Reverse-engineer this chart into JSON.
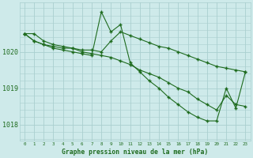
{
  "title": "Graphe pression niveau de la mer (hPa)",
  "background_color": "#ceeaea",
  "grid_color": "#aacfcf",
  "line_color": "#1e6b1e",
  "xlim": [
    -0.5,
    23.5
  ],
  "ylim": [
    1017.55,
    1021.35
  ],
  "yticks": [
    1018,
    1019,
    1020
  ],
  "ylabel_fontsize": 6.0,
  "xlabel_fontsize": 5.8,
  "series1": {
    "x": [
      0,
      1,
      2,
      3,
      4,
      5,
      6,
      7,
      8,
      9,
      10,
      11,
      12,
      13,
      14,
      15,
      16,
      17,
      18,
      19,
      20,
      21,
      22,
      23
    ],
    "y": [
      1020.5,
      1020.5,
      1020.3,
      1020.2,
      1020.15,
      1020.1,
      1020.05,
      1020.05,
      1020.0,
      1020.3,
      1020.55,
      1020.45,
      1020.35,
      1020.25,
      1020.15,
      1020.1,
      1020.0,
      1019.9,
      1019.8,
      1019.7,
      1019.6,
      1019.55,
      1019.5,
      1019.45
    ]
  },
  "series2": {
    "x": [
      0,
      1,
      2,
      3,
      4,
      5,
      6,
      7,
      8,
      9,
      10,
      11,
      12,
      13,
      14,
      15,
      16,
      17,
      18,
      19,
      20,
      21,
      22,
      23
    ],
    "y": [
      1020.5,
      1020.3,
      1020.2,
      1020.15,
      1020.1,
      1020.1,
      1020.0,
      1019.95,
      1019.9,
      1019.85,
      1019.75,
      1019.65,
      1019.5,
      1019.4,
      1019.3,
      1019.15,
      1019.0,
      1018.9,
      1018.7,
      1018.55,
      1018.4,
      1018.8,
      1018.55,
      1018.5
    ]
  },
  "series3": {
    "x": [
      0,
      1,
      2,
      3,
      4,
      5,
      6,
      7,
      8,
      9,
      10,
      11,
      12,
      13,
      14,
      15,
      16,
      17,
      18,
      19,
      20,
      21,
      22,
      23
    ],
    "y": [
      1020.5,
      1020.3,
      1020.2,
      1020.1,
      1020.05,
      1020.0,
      1019.95,
      1019.9,
      1021.1,
      1020.55,
      1020.75,
      1019.7,
      1019.45,
      1019.2,
      1019.0,
      1018.75,
      1018.55,
      1018.35,
      1018.2,
      1018.1,
      1018.1,
      1019.0,
      1018.45,
      1019.45
    ]
  }
}
